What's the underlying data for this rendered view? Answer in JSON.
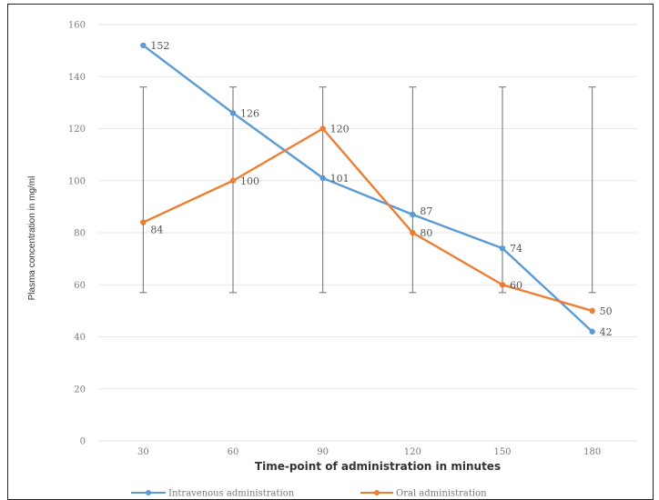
{
  "chart_data": {
    "type": "line",
    "xlabel": "Time-point of administration in minutes",
    "ylabel": "Plasma concentration in mg/ml",
    "categories": [
      "30",
      "60",
      "90",
      "120",
      "150",
      "180"
    ],
    "ylim": [
      0,
      160
    ],
    "yticks": [
      "0",
      "20",
      "40",
      "60",
      "80",
      "100",
      "120",
      "140",
      "160"
    ],
    "grid": true,
    "legend_position": "bottom",
    "series": [
      {
        "name": "Intravenous administration",
        "color": "#5b9bd5",
        "values": [
          152,
          126,
          101,
          87,
          74,
          42
        ],
        "labels": [
          "152",
          "126",
          "101",
          "87",
          "74",
          "42"
        ]
      },
      {
        "name": "Oral administration",
        "color": "#ed7d31",
        "values": [
          84,
          100,
          120,
          80,
          60,
          50
        ],
        "labels": [
          "84",
          "100",
          "120",
          "80",
          "60",
          "50"
        ]
      }
    ],
    "error_bars": {
      "color": "#6e6e6e",
      "low": 57,
      "high": 136
    }
  }
}
